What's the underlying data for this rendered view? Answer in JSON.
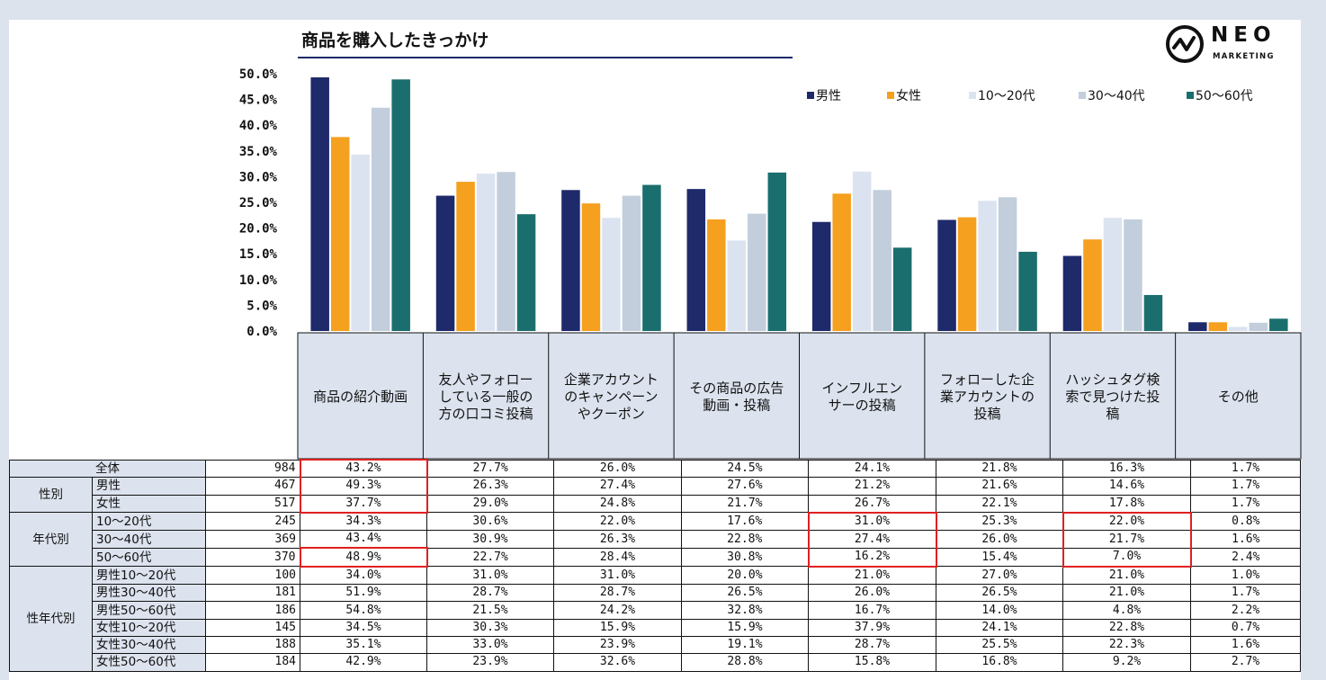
{
  "title": "商品を購入したきっかけ",
  "logo": {
    "word": "NEO",
    "sub": "MARKETING"
  },
  "colors": {
    "男性": "#1f2a6b",
    "女性": "#f5a01f",
    "10〜20代": "#dce3f0",
    "30〜40代": "#c2cedc",
    "50〜60代": "#1b6e6e",
    "highlight": "#e02020",
    "header_bg": "#dce3ee"
  },
  "chart_data": {
    "type": "bar",
    "title": "商品を購入したきっかけ",
    "ylim": [
      0,
      50
    ],
    "yticks": [
      "50.0%",
      "45.0%",
      "40.0%",
      "35.0%",
      "30.0%",
      "25.0%",
      "20.0%",
      "15.0%",
      "10.0%",
      "5.0%",
      "0.0%"
    ],
    "legend_position": "top-right",
    "categories": [
      "商品の紹介動画",
      "友人やフォローしている一般の方の口コミ投稿",
      "企業アカウントのキャンペーンやクーポン",
      "その商品の広告動画・投稿",
      "インフルエンサーの投稿",
      "フォローした企業アカウントの投稿",
      "ハッシュタグ検索で見つけた投稿",
      "その他"
    ],
    "category_lines": [
      [
        "商品の紹介動画"
      ],
      [
        "友人やフォロー",
        "している一般の",
        "方の口コミ投稿"
      ],
      [
        "企業アカウント",
        "のキャンペーン",
        "やクーポン"
      ],
      [
        "その商品の広告",
        "動画・投稿"
      ],
      [
        "インフルエン",
        "サーの投稿"
      ],
      [
        "フォローした企",
        "業アカウントの",
        "投稿"
      ],
      [
        "ハッシュタグ検",
        "索で見つけた投",
        "稿"
      ],
      [
        "その他"
      ]
    ],
    "series": [
      {
        "name": "男性",
        "values": [
          49.3,
          26.3,
          27.4,
          27.6,
          21.2,
          21.6,
          14.6,
          1.7
        ]
      },
      {
        "name": "女性",
        "values": [
          37.7,
          29.0,
          24.8,
          21.7,
          26.7,
          22.1,
          17.8,
          1.7
        ]
      },
      {
        "name": "10〜20代",
        "values": [
          34.3,
          30.6,
          22.0,
          17.6,
          31.0,
          25.3,
          22.0,
          0.8
        ]
      },
      {
        "name": "30〜40代",
        "values": [
          43.4,
          30.9,
          26.3,
          22.8,
          27.4,
          26.0,
          21.7,
          1.6
        ]
      },
      {
        "name": "50〜60代",
        "values": [
          48.9,
          22.7,
          28.4,
          30.8,
          16.2,
          15.4,
          7.0,
          2.4
        ]
      }
    ]
  },
  "table": {
    "rows": [
      {
        "group": "全体",
        "label": "",
        "n": "984",
        "values": [
          "43.2%",
          "27.7%",
          "26.0%",
          "24.5%",
          "24.1%",
          "21.8%",
          "16.3%",
          "1.7%"
        ]
      },
      {
        "group": "性別",
        "label": "男性",
        "n": "467",
        "values": [
          "49.3%",
          "26.3%",
          "27.4%",
          "27.6%",
          "21.2%",
          "21.6%",
          "14.6%",
          "1.7%"
        ]
      },
      {
        "group": "",
        "label": "女性",
        "n": "517",
        "values": [
          "37.7%",
          "29.0%",
          "24.8%",
          "21.7%",
          "26.7%",
          "22.1%",
          "17.8%",
          "1.7%"
        ]
      },
      {
        "group": "年代別",
        "label": "10〜20代",
        "n": "245",
        "values": [
          "34.3%",
          "30.6%",
          "22.0%",
          "17.6%",
          "31.0%",
          "25.3%",
          "22.0%",
          "0.8%"
        ]
      },
      {
        "group": "",
        "label": "30〜40代",
        "n": "369",
        "values": [
          "43.4%",
          "30.9%",
          "26.3%",
          "22.8%",
          "27.4%",
          "26.0%",
          "21.7%",
          "1.6%"
        ]
      },
      {
        "group": "",
        "label": "50〜60代",
        "n": "370",
        "values": [
          "48.9%",
          "22.7%",
          "28.4%",
          "30.8%",
          "16.2%",
          "15.4%",
          "7.0%",
          "2.4%"
        ]
      },
      {
        "group": "性年代別",
        "label": "男性10〜20代",
        "n": "100",
        "values": [
          "34.0%",
          "31.0%",
          "31.0%",
          "20.0%",
          "21.0%",
          "27.0%",
          "21.0%",
          "1.0%"
        ]
      },
      {
        "group": "",
        "label": "男性30〜40代",
        "n": "181",
        "values": [
          "51.9%",
          "28.7%",
          "28.7%",
          "26.5%",
          "26.0%",
          "26.5%",
          "21.0%",
          "1.7%"
        ]
      },
      {
        "group": "",
        "label": "男性50〜60代",
        "n": "186",
        "values": [
          "54.8%",
          "21.5%",
          "24.2%",
          "32.8%",
          "16.7%",
          "14.0%",
          "4.8%",
          "2.2%"
        ]
      },
      {
        "group": "",
        "label": "女性10〜20代",
        "n": "145",
        "values": [
          "34.5%",
          "30.3%",
          "15.9%",
          "15.9%",
          "37.9%",
          "24.1%",
          "22.8%",
          "0.7%"
        ]
      },
      {
        "group": "",
        "label": "女性30〜40代",
        "n": "188",
        "values": [
          "35.1%",
          "33.0%",
          "23.9%",
          "19.1%",
          "28.7%",
          "25.5%",
          "22.3%",
          "1.6%"
        ]
      },
      {
        "group": "",
        "label": "女性50〜60代",
        "n": "184",
        "values": [
          "42.9%",
          "23.9%",
          "32.6%",
          "28.8%",
          "15.8%",
          "16.8%",
          "9.2%",
          "2.7%"
        ]
      }
    ]
  }
}
